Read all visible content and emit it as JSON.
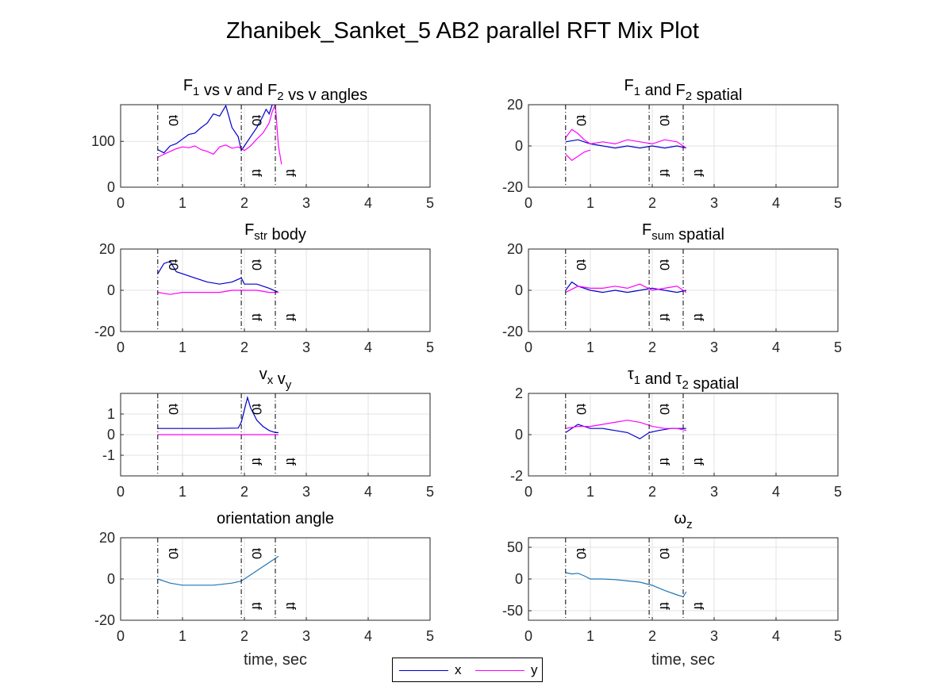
{
  "figure_title": "Zhanibek_Sanket_5 AB2 parallel RFT Mix Plot",
  "legend": {
    "x_label": "x",
    "y_label": "y",
    "x_color": "#0000cc",
    "y_color": "#ff00ff"
  },
  "chart_data": [
    {
      "type": "line",
      "title_base": "F",
      "title_parts": [
        [
          "F",
          ""
        ],
        [
          "1",
          "sub"
        ],
        [
          " vs v and F",
          ""
        ],
        [
          "2",
          "sub"
        ],
        [
          " vs v angles",
          ""
        ]
      ],
      "xlim": [
        0,
        5
      ],
      "ylim": [
        0,
        180
      ],
      "yticks": [
        0,
        100
      ],
      "xticks": [
        0,
        1,
        2,
        3,
        4,
        5
      ],
      "grid": true,
      "markers": [
        0.6,
        1.95,
        2.5
      ],
      "marker_labels": {
        "t0": [
          0.6,
          1.95
        ],
        "tf": [
          1.95,
          2.5
        ]
      },
      "xlabel": "",
      "series": [
        {
          "name": "x",
          "color": "#0000cc",
          "x": [
            0.6,
            0.7,
            0.8,
            0.9,
            1.0,
            1.1,
            1.2,
            1.3,
            1.4,
            1.5,
            1.6,
            1.7,
            1.8,
            1.9,
            1.95,
            2.0,
            2.1,
            2.2,
            2.3,
            2.35,
            2.4,
            2.45,
            2.5
          ],
          "y": [
            82,
            75,
            90,
            95,
            105,
            115,
            118,
            130,
            140,
            160,
            155,
            178,
            130,
            110,
            80,
            90,
            110,
            130,
            155,
            170,
            160,
            180,
            180
          ]
        },
        {
          "name": "y",
          "color": "#ff00ff",
          "x": [
            0.6,
            0.7,
            0.8,
            0.9,
            1.0,
            1.1,
            1.2,
            1.3,
            1.4,
            1.5,
            1.6,
            1.7,
            1.8,
            1.9,
            2.0,
            2.1,
            2.2,
            2.3,
            2.4,
            2.45,
            2.5,
            2.55,
            2.6
          ],
          "y": [
            65,
            72,
            78,
            84,
            88,
            86,
            90,
            82,
            78,
            72,
            88,
            92,
            85,
            88,
            80,
            90,
            105,
            118,
            140,
            165,
            180,
            90,
            50
          ]
        }
      ]
    },
    {
      "type": "line",
      "title_parts": [
        [
          "F",
          ""
        ],
        [
          "1",
          "sub"
        ],
        [
          " and F",
          ""
        ],
        [
          "2",
          "sub"
        ],
        [
          " spatial",
          ""
        ]
      ],
      "xlim": [
        0,
        5
      ],
      "ylim": [
        -20,
        20
      ],
      "yticks": [
        -20,
        0,
        20
      ],
      "xticks": [
        0,
        1,
        2,
        3,
        4,
        5
      ],
      "grid": true,
      "markers": [
        0.6,
        1.95,
        2.5
      ],
      "marker_labels": {
        "t0": [
          0.6,
          1.95
        ],
        "tf": [
          1.95,
          2.5
        ]
      },
      "xlabel": "",
      "series": [
        {
          "name": "x",
          "color": "#0000cc",
          "x": [
            0.6,
            0.8,
            1.0,
            1.2,
            1.4,
            1.6,
            1.8,
            2.0,
            2.2,
            2.4,
            2.55
          ],
          "y": [
            2,
            3,
            1,
            0,
            -1,
            0,
            -1,
            0,
            -1,
            0,
            -1
          ]
        },
        {
          "name": "y",
          "color": "#ff00ff",
          "x": [
            0.6,
            0.7,
            0.8,
            0.9,
            1.0,
            1.2,
            1.4,
            1.6,
            1.8,
            2.0,
            2.2,
            2.4,
            2.55
          ],
          "y": [
            4,
            8,
            6,
            3,
            1,
            2,
            1,
            3,
            2,
            1,
            3,
            2,
            -1
          ]
        },
        {
          "name": "y",
          "color": "#ff00ff",
          "x": [
            0.6,
            0.7,
            0.8,
            0.9,
            1.0
          ],
          "y": [
            -4,
            -7,
            -5,
            -3,
            -2
          ]
        }
      ]
    },
    {
      "type": "line",
      "title_parts": [
        [
          "F",
          ""
        ],
        [
          "str",
          "sub"
        ],
        [
          " body",
          ""
        ]
      ],
      "xlim": [
        0,
        5
      ],
      "ylim": [
        -20,
        20
      ],
      "yticks": [
        -20,
        0,
        20
      ],
      "xticks": [
        0,
        1,
        2,
        3,
        4,
        5
      ],
      "grid": true,
      "markers": [
        0.6,
        1.95,
        2.5
      ],
      "marker_labels": {
        "t0": [
          0.6,
          1.95
        ],
        "tf": [
          1.95,
          2.5
        ]
      },
      "xlabel": "",
      "series": [
        {
          "name": "x",
          "color": "#0000cc",
          "x": [
            0.6,
            0.7,
            0.8,
            0.9,
            1.0,
            1.2,
            1.4,
            1.6,
            1.8,
            1.95,
            2.0,
            2.2,
            2.4,
            2.55
          ],
          "y": [
            8,
            13,
            14,
            9,
            8,
            6,
            4,
            3,
            4,
            6,
            3,
            3,
            1,
            -1
          ]
        },
        {
          "name": "y",
          "color": "#ff00ff",
          "x": [
            0.6,
            0.8,
            1.0,
            1.2,
            1.4,
            1.6,
            1.8,
            2.0,
            2.2,
            2.4,
            2.55
          ],
          "y": [
            -1,
            -2,
            -1,
            -1,
            -1,
            -1,
            0,
            0,
            0,
            -1,
            -1
          ]
        }
      ]
    },
    {
      "type": "line",
      "title_parts": [
        [
          "F",
          ""
        ],
        [
          "sum",
          "sub"
        ],
        [
          " spatial",
          ""
        ]
      ],
      "xlim": [
        0,
        5
      ],
      "ylim": [
        -20,
        20
      ],
      "yticks": [
        -20,
        0,
        20
      ],
      "xticks": [
        0,
        1,
        2,
        3,
        4,
        5
      ],
      "grid": true,
      "markers": [
        0.6,
        1.95,
        2.5
      ],
      "marker_labels": {
        "t0": [
          0.6,
          1.95
        ],
        "tf": [
          1.95,
          2.5
        ]
      },
      "xlabel": "",
      "series": [
        {
          "name": "x",
          "color": "#0000cc",
          "x": [
            0.6,
            0.7,
            0.8,
            1.0,
            1.2,
            1.4,
            1.6,
            1.8,
            2.0,
            2.2,
            2.4,
            2.55
          ],
          "y": [
            0,
            4,
            2,
            0,
            -1,
            0,
            -1,
            0,
            1,
            0,
            -1,
            0
          ]
        },
        {
          "name": "y",
          "color": "#ff00ff",
          "x": [
            0.6,
            0.8,
            1.0,
            1.2,
            1.4,
            1.6,
            1.8,
            2.0,
            2.2,
            2.4,
            2.55
          ],
          "y": [
            -1,
            2,
            1,
            1,
            2,
            1,
            3,
            0,
            1,
            2,
            -1
          ]
        }
      ]
    },
    {
      "type": "line",
      "title_parts": [
        [
          "v",
          ""
        ],
        [
          "x",
          "sub"
        ],
        [
          " v",
          ""
        ],
        [
          "y",
          "sub"
        ]
      ],
      "xlim": [
        0,
        5
      ],
      "ylim": [
        -2,
        2
      ],
      "yticks": [
        -1,
        0,
        1
      ],
      "xticks": [
        0,
        1,
        2,
        3,
        4,
        5
      ],
      "grid": true,
      "markers": [
        0.6,
        1.95,
        2.5
      ],
      "marker_labels": {
        "t0": [
          0.6,
          1.95
        ],
        "tf": [
          1.95,
          2.5
        ]
      },
      "xlabel": "",
      "series": [
        {
          "name": "x",
          "color": "#0000cc",
          "x": [
            0.6,
            1.0,
            1.5,
            1.9,
            1.95,
            2.0,
            2.05,
            2.1,
            2.2,
            2.3,
            2.4,
            2.5,
            2.55
          ],
          "y": [
            0.3,
            0.3,
            0.3,
            0.32,
            0.6,
            1.2,
            1.8,
            1.3,
            0.7,
            0.4,
            0.2,
            0.1,
            0.1
          ]
        },
        {
          "name": "y",
          "color": "#ff00ff",
          "x": [
            0.6,
            2.55
          ],
          "y": [
            0,
            0
          ]
        }
      ]
    },
    {
      "type": "line",
      "title_parts": [
        [
          "τ",
          ""
        ],
        [
          "1",
          "sub"
        ],
        [
          " and τ",
          ""
        ],
        [
          "2",
          "sub"
        ],
        [
          " spatial",
          ""
        ]
      ],
      "xlim": [
        0,
        5
      ],
      "ylim": [
        -2,
        2
      ],
      "yticks": [
        -2,
        0,
        2
      ],
      "xticks": [
        0,
        1,
        2,
        3,
        4,
        5
      ],
      "grid": true,
      "markers": [
        0.6,
        1.95,
        2.5
      ],
      "marker_labels": {
        "t0": [
          0.6,
          1.95
        ],
        "tf": [
          1.95,
          2.5
        ]
      },
      "xlabel": "",
      "series": [
        {
          "name": "x",
          "color": "#0000cc",
          "x": [
            0.6,
            0.8,
            1.0,
            1.2,
            1.4,
            1.6,
            1.8,
            1.95,
            2.1,
            2.3,
            2.55
          ],
          "y": [
            0.1,
            0.5,
            0.3,
            0.3,
            0.2,
            0.1,
            -0.2,
            0.1,
            0.2,
            0.3,
            0.3
          ]
        },
        {
          "name": "y",
          "color": "#ff00ff",
          "x": [
            0.6,
            0.8,
            1.0,
            1.2,
            1.4,
            1.6,
            1.8,
            2.0,
            2.2,
            2.4,
            2.55
          ],
          "y": [
            0.3,
            0.4,
            0.4,
            0.5,
            0.6,
            0.7,
            0.6,
            0.4,
            0.3,
            0.3,
            0.2
          ]
        }
      ]
    },
    {
      "type": "line",
      "title_parts": [
        [
          "orientation angle",
          ""
        ]
      ],
      "xlim": [
        0,
        5
      ],
      "ylim": [
        -20,
        20
      ],
      "yticks": [
        -20,
        0,
        20
      ],
      "xticks": [
        0,
        1,
        2,
        3,
        4,
        5
      ],
      "grid": true,
      "markers": [
        0.6,
        1.95,
        2.5
      ],
      "marker_labels": {
        "t0": [
          0.6,
          1.95
        ],
        "tf": [
          1.95,
          2.5
        ]
      },
      "xlabel": "time, sec",
      "series": [
        {
          "name": "",
          "color": "#1f77b4",
          "x": [
            0.6,
            0.8,
            1.0,
            1.2,
            1.5,
            1.8,
            1.95,
            2.1,
            2.3,
            2.45,
            2.55
          ],
          "y": [
            0,
            -2,
            -3,
            -3,
            -3,
            -2,
            -1,
            2,
            6,
            9,
            11
          ]
        }
      ]
    },
    {
      "type": "line",
      "title_parts": [
        [
          "ω",
          ""
        ],
        [
          "z",
          "sub"
        ]
      ],
      "xlim": [
        0,
        5
      ],
      "ylim": [
        -65,
        65
      ],
      "yticks": [
        -50,
        0,
        50
      ],
      "xticks": [
        0,
        1,
        2,
        3,
        4,
        5
      ],
      "grid": true,
      "markers": [
        0.6,
        1.95,
        2.5
      ],
      "marker_labels": {
        "t0": [
          0.6,
          1.95
        ],
        "tf": [
          1.95,
          2.5
        ]
      },
      "xlabel": "time, sec",
      "series": [
        {
          "name": "",
          "color": "#1f77b4",
          "x": [
            0.6,
            0.7,
            0.8,
            0.9,
            1.0,
            1.2,
            1.4,
            1.6,
            1.8,
            2.0,
            2.2,
            2.4,
            2.5,
            2.55
          ],
          "y": [
            10,
            8,
            9,
            5,
            0,
            0,
            -1,
            -3,
            -5,
            -10,
            -18,
            -25,
            -28,
            -20
          ]
        }
      ]
    }
  ]
}
